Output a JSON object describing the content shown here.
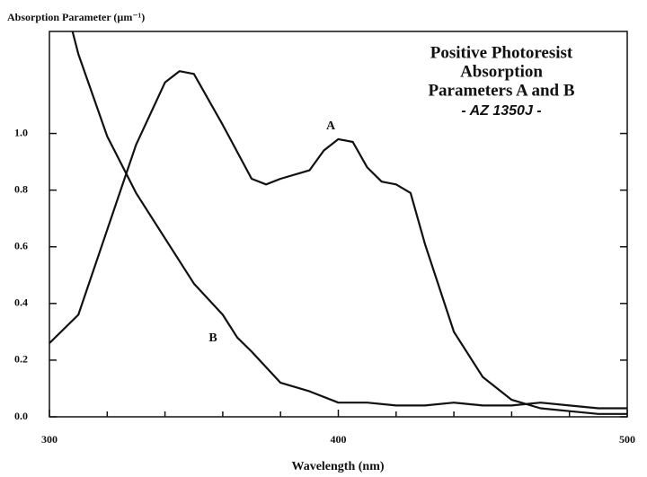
{
  "chart_data": {
    "type": "line",
    "title": [
      "Positive Photoresist",
      "Absorption",
      "Parameters A and B",
      "- AZ 1350J -"
    ],
    "y_label": "Absorption Parameter (µm⁻¹)",
    "x_label": "Wavelength (nm)",
    "xlim": [
      300,
      500
    ],
    "ylim": [
      0,
      1.36
    ],
    "xticks": [
      300,
      400,
      500
    ],
    "xminor_ticks": [
      320,
      340,
      360,
      380,
      420,
      440,
      460,
      480
    ],
    "yticks": [
      {
        "value": 0,
        "label": "0.0"
      },
      0.2,
      0.4,
      0.6,
      0.8,
      {
        "value": 1,
        "label": "1.0"
      }
    ],
    "color": "#111111",
    "series": [
      {
        "name": "A",
        "color": "#111111",
        "x": [
          300,
          310,
          320,
          330,
          340,
          345,
          350,
          360,
          370,
          375,
          380,
          390,
          395,
          400,
          405,
          410,
          415,
          420,
          425,
          430,
          440,
          450,
          460,
          470,
          480,
          490,
          500
        ],
        "values": [
          0.26,
          0.36,
          0.66,
          0.96,
          1.18,
          1.22,
          1.21,
          1.03,
          0.84,
          0.82,
          0.84,
          0.87,
          0.94,
          0.98,
          0.97,
          0.88,
          0.83,
          0.82,
          0.79,
          0.61,
          0.3,
          0.14,
          0.06,
          0.03,
          0.02,
          0.01,
          0.01
        ]
      },
      {
        "name": "B",
        "color": "#111111",
        "x": [
          308,
          310,
          320,
          330,
          340,
          350,
          360,
          365,
          370,
          380,
          390,
          400,
          410,
          420,
          430,
          440,
          450,
          460,
          470,
          480,
          490,
          500
        ],
        "values": [
          1.36,
          1.28,
          0.99,
          0.79,
          0.63,
          0.47,
          0.36,
          0.28,
          0.23,
          0.12,
          0.09,
          0.05,
          0.05,
          0.04,
          0.04,
          0.05,
          0.04,
          0.04,
          0.05,
          0.04,
          0.03,
          0.03
        ]
      }
    ]
  }
}
